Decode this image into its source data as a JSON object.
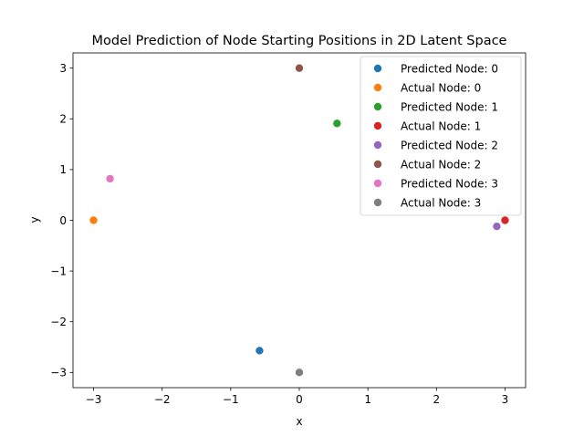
{
  "chart_data": {
    "type": "scatter",
    "title": "Model Prediction of Node Starting Positions in 2D Latent Space",
    "xlabel": "x",
    "ylabel": "y",
    "xlim": [
      -3.3,
      3.3
    ],
    "ylim": [
      -3.3,
      3.3
    ],
    "x_ticks": [
      -3,
      -2,
      -1,
      0,
      1,
      2,
      3
    ],
    "y_ticks": [
      -3,
      -2,
      -1,
      0,
      1,
      2,
      3
    ],
    "x_tick_labels": [
      "−3",
      "−2",
      "−1",
      "0",
      "1",
      "2",
      "3"
    ],
    "y_tick_labels": [
      "−3",
      "−2",
      "−1",
      "0",
      "1",
      "2",
      "3"
    ],
    "grid": false,
    "legend_position": "top-right",
    "series": [
      {
        "name": "Predicted Node: 0",
        "color": "#1f77b4",
        "points": [
          [
            -0.58,
            -2.57
          ]
        ]
      },
      {
        "name": "Actual Node: 0",
        "color": "#ff7f0e",
        "points": [
          [
            -3.0,
            0.0
          ]
        ]
      },
      {
        "name": "Predicted Node: 1",
        "color": "#2ca02c",
        "points": [
          [
            0.55,
            1.91
          ]
        ]
      },
      {
        "name": "Actual Node: 1",
        "color": "#d62728",
        "points": [
          [
            3.0,
            0.0
          ]
        ]
      },
      {
        "name": "Predicted Node: 2",
        "color": "#9467bd",
        "points": [
          [
            2.88,
            -0.12
          ]
        ]
      },
      {
        "name": "Actual Node: 2",
        "color": "#8c564b",
        "points": [
          [
            0.0,
            3.0
          ]
        ]
      },
      {
        "name": "Predicted Node: 3",
        "color": "#e377c2",
        "points": [
          [
            -2.76,
            0.82
          ]
        ]
      },
      {
        "name": "Actual Node: 3",
        "color": "#7f7f7f",
        "points": [
          [
            0.0,
            -3.0
          ]
        ]
      }
    ]
  }
}
